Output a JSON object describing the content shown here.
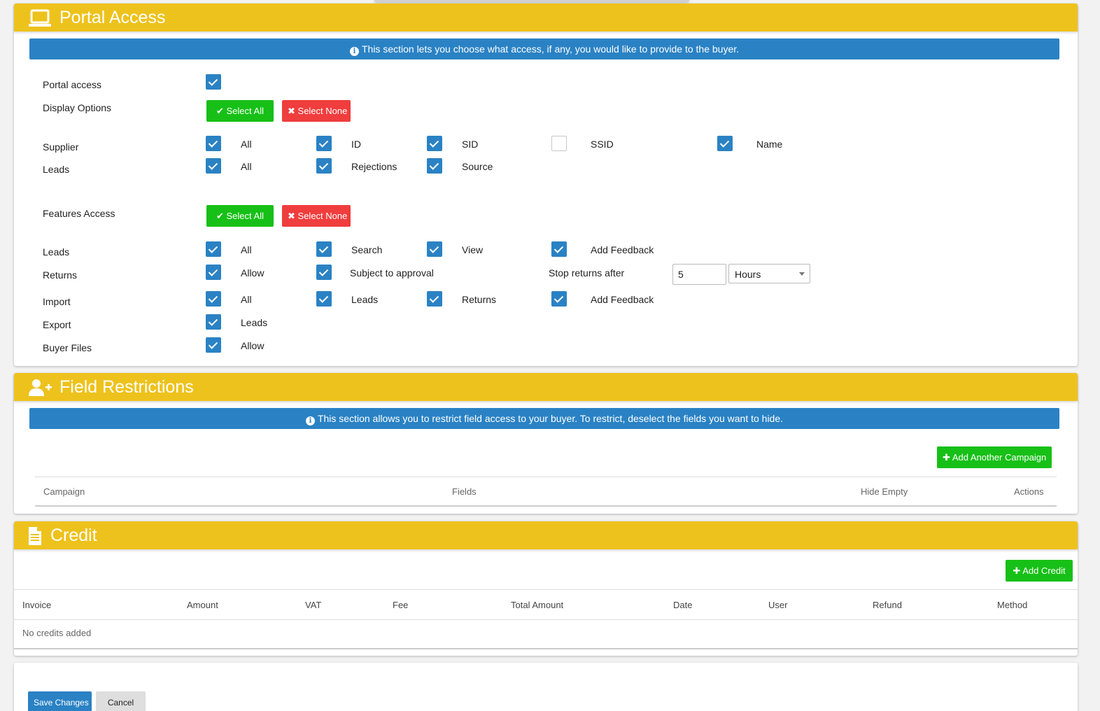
{
  "portal_access": {
    "title": "Portal Access",
    "info": "This section lets you choose what access, if any, you would like to provide to the buyer.",
    "portal_access_label": "Portal access",
    "display_options": {
      "label": "Display Options",
      "select_all": "Select All",
      "select_none": "Select None",
      "supplier": {
        "label": "Supplier",
        "options": [
          "All",
          "ID",
          "SID",
          "SSID",
          "Name"
        ],
        "checked": [
          true,
          true,
          true,
          false,
          true
        ]
      },
      "leads": {
        "label": "Leads",
        "options": [
          "All",
          "Rejections",
          "Source"
        ],
        "checked": [
          true,
          true,
          true
        ]
      }
    },
    "features_access": {
      "label": "Features Access",
      "select_all": "Select All",
      "select_none": "Select None",
      "leads": {
        "label": "Leads",
        "options": [
          "All",
          "Search",
          "View",
          "Add Feedback"
        ]
      },
      "returns": {
        "label": "Returns",
        "allow": "Allow",
        "subject": "Subject to approval",
        "stop_label": "Stop returns after",
        "stop_value": "5",
        "unit": "Hours"
      },
      "import": {
        "label": "Import",
        "options": [
          "All",
          "Leads",
          "Returns",
          "Add Feedback"
        ]
      },
      "export": {
        "label": "Export",
        "option": "Leads"
      },
      "buyer_files": {
        "label": "Buyer Files",
        "option": "Allow"
      }
    }
  },
  "field_restrictions": {
    "title": "Field Restrictions",
    "info": "This section allows you to restrict field access to your buyer. To restrict, deselect the fields you want to hide.",
    "add_button": "Add Another Campaign",
    "columns": [
      "Campaign",
      "Fields",
      "Hide Empty",
      "Actions"
    ]
  },
  "credit": {
    "title": "Credit",
    "add_button": "Add Credit",
    "columns": [
      "Invoice",
      "Amount",
      "VAT",
      "Fee",
      "Total Amount",
      "Date",
      "User",
      "Refund",
      "Method"
    ],
    "empty": "No credits added"
  },
  "footer": {
    "save": "Save Changes",
    "cancel": "Cancel"
  },
  "colors": {
    "header": "#eec21c",
    "info": "#2a82c4",
    "green": "#17c017",
    "red": "#f03d3d"
  }
}
